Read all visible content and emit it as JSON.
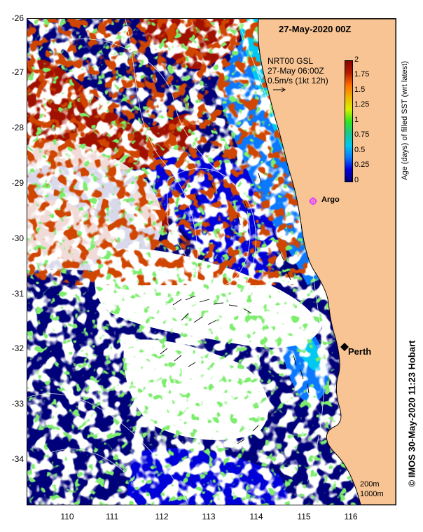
{
  "title": "27-May-2020 00Z",
  "legend": {
    "product": "NRT00 GSL",
    "time": "27-May 06:00Z",
    "vector_scale": "0.5m/s (1kt 12h)"
  },
  "colorbar": {
    "title": "Age (days) of filled SST (wrt latest)",
    "ticks": [
      "2",
      "1.75",
      "1.5",
      "1.25",
      "1",
      "0.75",
      "0.5",
      "0.25",
      "0"
    ],
    "colors": [
      "#00007a",
      "#0000d8",
      "#0a78ff",
      "#00c8f0",
      "#16c88c",
      "#32e61e",
      "#d8f000",
      "#f0b400",
      "#ff6e00",
      "#b41c00",
      "#8c0000"
    ]
  },
  "axes": {
    "lat_labels": [
      "-26",
      "-27",
      "-28",
      "-29",
      "-30",
      "-31",
      "-32",
      "-33",
      "-34"
    ],
    "lon_labels": [
      "110",
      "111",
      "112",
      "113",
      "114",
      "115",
      "116"
    ]
  },
  "markers": [
    {
      "name": "Argo",
      "lon": 115.2,
      "lat": -29.35,
      "color": "#e040ff"
    },
    {
      "name": "Perth",
      "lon": 115.86,
      "lat": -31.95,
      "color": "#000000"
    }
  ],
  "contour_legend": {
    "line1": "200m",
    "line2": "1000m"
  },
  "credit": "© IMOS 30-May-2020 11:23 Hobart",
  "colors": {
    "land": "#f8c493",
    "deep_blue": "#00007a",
    "mid_blue": "#0000d8",
    "light_blue": "#0a78ff",
    "cyan": "#00c8f0",
    "green": "#32e61e",
    "dark_red": "#a01000"
  }
}
